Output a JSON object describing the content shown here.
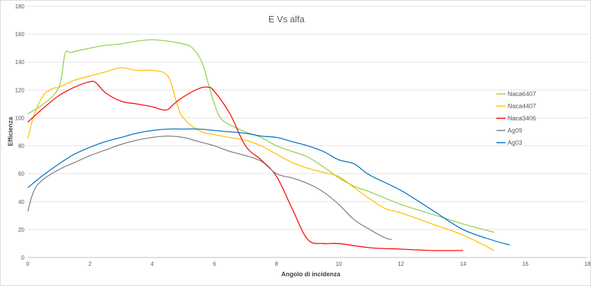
{
  "chart_data": {
    "type": "line",
    "title": "E Vs alfa",
    "xlabel": "Angolo di incidenza",
    "ylabel": "Efficienza",
    "xlim": [
      0,
      18
    ],
    "ylim": [
      0,
      180
    ],
    "xticks": [
      0,
      2,
      4,
      6,
      8,
      10,
      12,
      14,
      16,
      18
    ],
    "yticks": [
      0,
      20,
      40,
      60,
      80,
      100,
      120,
      140,
      160,
      180
    ],
    "grid": "horizontal",
    "legend": "right",
    "series": [
      {
        "name": "Naca6407",
        "color": "#92d050",
        "x": [
          0,
          0.5,
          1.0,
          1.2,
          1.4,
          2.0,
          2.5,
          3.0,
          3.5,
          4.0,
          4.5,
          5.0,
          5.3,
          5.6,
          5.8,
          6.0,
          6.2,
          6.5,
          7.0,
          7.5,
          8.0,
          8.5,
          9.0,
          9.5,
          10.0,
          10.5,
          11.0,
          12.0,
          13.0,
          14.0,
          15.0
        ],
        "y": [
          103,
          110,
          122,
          146,
          147,
          150,
          152,
          153,
          155,
          156,
          155,
          153,
          150,
          140,
          125,
          110,
          100,
          95,
          90,
          86,
          80,
          76,
          72,
          65,
          57,
          51,
          47,
          38,
          31,
          24,
          18
        ]
      },
      {
        "name": "Naca4407",
        "color": "#ffc000",
        "x": [
          0,
          0.2,
          0.5,
          0.8,
          1.0,
          1.5,
          2.0,
          2.5,
          3.0,
          3.5,
          4.0,
          4.5,
          4.8,
          5.0,
          5.5,
          6.0,
          6.5,
          7.0,
          7.5,
          8.0,
          8.5,
          9.0,
          9.5,
          10.0,
          10.5,
          11.0,
          11.5,
          12.0,
          13.0,
          14.0,
          15.0
        ],
        "y": [
          85,
          102,
          116,
          121,
          122,
          127,
          130,
          133,
          136,
          134,
          134,
          130,
          110,
          100,
          91,
          88,
          86,
          84,
          80,
          74,
          68,
          64,
          61,
          58,
          50,
          42,
          35,
          32,
          24,
          16,
          5
        ]
      },
      {
        "name": "Naca3406",
        "color": "#ff0000",
        "x": [
          0,
          0.5,
          1.0,
          1.5,
          2.0,
          2.2,
          2.5,
          3.0,
          3.5,
          4.0,
          4.3,
          4.5,
          4.7,
          5.0,
          5.5,
          5.8,
          6.0,
          6.5,
          7.0,
          7.5,
          8.0,
          8.5,
          9.0,
          9.5,
          10.0,
          11.0,
          12.0,
          13.0,
          14.0
        ],
        "y": [
          97,
          107,
          116,
          122,
          126,
          125,
          118,
          112,
          110,
          108,
          106,
          106,
          110,
          115,
          121,
          122,
          119,
          103,
          80,
          70,
          58,
          35,
          13,
          10,
          10,
          7,
          6,
          5,
          5
        ]
      },
      {
        "name": "Ag09",
        "color": "#7f7f7f",
        "x": [
          0,
          0.2,
          0.5,
          1.0,
          1.5,
          2.0,
          2.5,
          3.0,
          3.5,
          4.0,
          4.5,
          5.0,
          5.5,
          6.0,
          6.5,
          7.0,
          7.5,
          8.0,
          8.5,
          9.0,
          9.5,
          10.0,
          10.5,
          11.0,
          11.5,
          11.7
        ],
        "y": [
          33,
          48,
          56,
          63,
          68,
          73,
          77,
          81,
          84,
          86,
          87,
          86,
          83,
          80,
          76,
          73,
          69,
          60,
          57,
          53,
          47,
          38,
          27,
          20,
          14,
          13
        ]
      },
      {
        "name": "Ag03",
        "color": "#0070c0",
        "x": [
          0,
          0.5,
          1.0,
          1.5,
          2.0,
          2.5,
          3.0,
          3.5,
          4.0,
          4.5,
          5.0,
          5.5,
          6.0,
          6.5,
          7.0,
          7.5,
          8.0,
          8.5,
          9.0,
          9.5,
          10.0,
          10.5,
          11.0,
          12.0,
          13.0,
          14.0,
          15.0,
          15.5
        ],
        "y": [
          50,
          59,
          67,
          74,
          79,
          83,
          86,
          89,
          91,
          92,
          92,
          92,
          91,
          90,
          89,
          87,
          86,
          83,
          80,
          76,
          70,
          67,
          59,
          48,
          34,
          20,
          12,
          9
        ]
      }
    ]
  }
}
